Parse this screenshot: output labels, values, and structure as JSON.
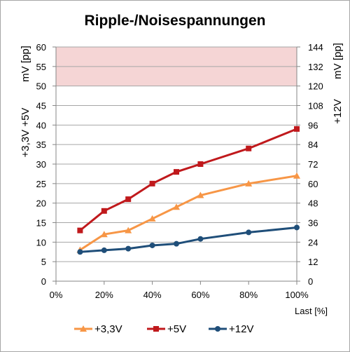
{
  "chart_data": {
    "type": "line",
    "title": "Ripple-/Noisespannungen",
    "xlabel": "Last [%]",
    "ylabel_left": "+3,3V +5V mV [pp]",
    "ylabel_right": "+12V mV [pp]",
    "xlim": [
      0,
      100
    ],
    "ylim_left": [
      0,
      60
    ],
    "ylim_right": [
      0,
      144
    ],
    "x_ticks": [
      "0%",
      "20%",
      "40%",
      "60%",
      "80%",
      "100%"
    ],
    "y_ticks_left": [
      "0",
      "5",
      "10",
      "15",
      "20",
      "25",
      "30",
      "35",
      "40",
      "45",
      "50",
      "55",
      "60"
    ],
    "y_ticks_right": [
      "0",
      "12",
      "24",
      "36",
      "48",
      "60",
      "72",
      "84",
      "96",
      "108",
      "120",
      "132",
      "144"
    ],
    "limit_band": {
      "from": 50,
      "to": 60,
      "axis": "left",
      "color": "#f5d5d5"
    },
    "grid": true,
    "legend_position": "bottom",
    "x": [
      10,
      20,
      30,
      40,
      50,
      60,
      80,
      100
    ],
    "series": [
      {
        "name": "+3,3V",
        "axis": "left",
        "color": "#f79646",
        "marker": "triangle",
        "values": [
          8,
          12,
          13,
          16,
          19,
          22,
          25,
          27
        ]
      },
      {
        "name": "+5V",
        "axis": "left",
        "color": "#c0191c",
        "marker": "square",
        "values": [
          13,
          18,
          21,
          25,
          28,
          30,
          34,
          39
        ]
      },
      {
        "name": "+12V",
        "axis": "right",
        "color": "#1f4e79",
        "marker": "circle",
        "values": [
          18,
          19,
          20,
          22,
          23,
          26,
          30,
          33
        ]
      }
    ]
  }
}
